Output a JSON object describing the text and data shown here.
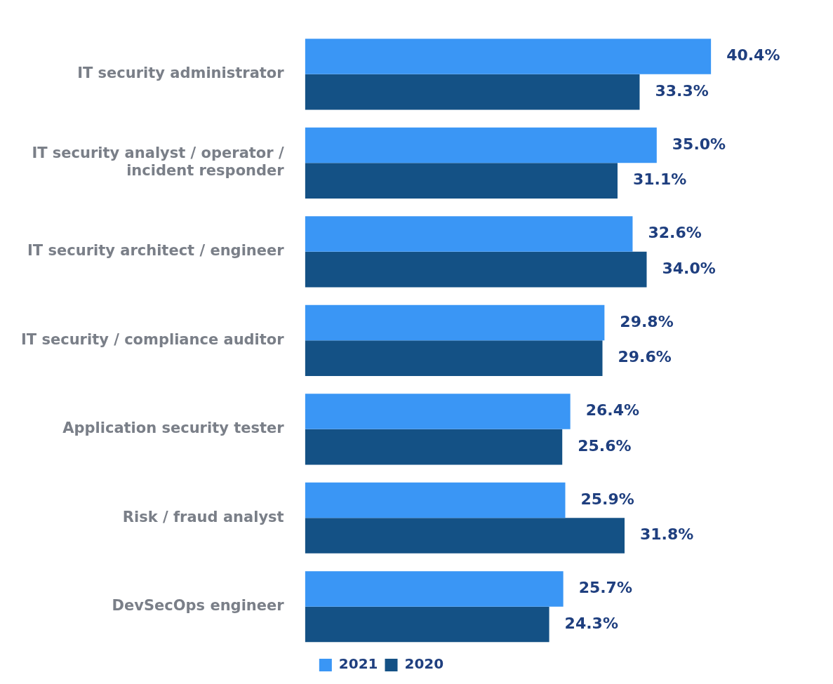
{
  "chart_data": {
    "type": "bar",
    "orientation": "horizontal",
    "categories": [
      "IT security administrator",
      "IT security analyst / operator / incident responder",
      "IT security architect / engineer",
      "IT security / compliance auditor",
      "Application security tester",
      "Risk / fraud analyst",
      "DevSecOps engineer"
    ],
    "series": [
      {
        "name": "2021",
        "color": "#3a96f5",
        "values": [
          40.4,
          35.0,
          32.6,
          29.8,
          26.4,
          25.9,
          25.7
        ],
        "value_labels": [
          "40.4%",
          "35.0%",
          "32.6%",
          "29.8%",
          "26.4%",
          "25.9%",
          "25.7%"
        ]
      },
      {
        "name": "2020",
        "color": "#145185",
        "values": [
          33.3,
          31.1,
          34.0,
          29.6,
          25.6,
          31.8,
          24.3
        ],
        "value_labels": [
          "33.3%",
          "31.1%",
          "34.0%",
          "29.6%",
          "25.6%",
          "31.8%",
          "24.3%"
        ]
      }
    ],
    "tick_labels": "y",
    "grid": false,
    "legend": "bottom"
  }
}
